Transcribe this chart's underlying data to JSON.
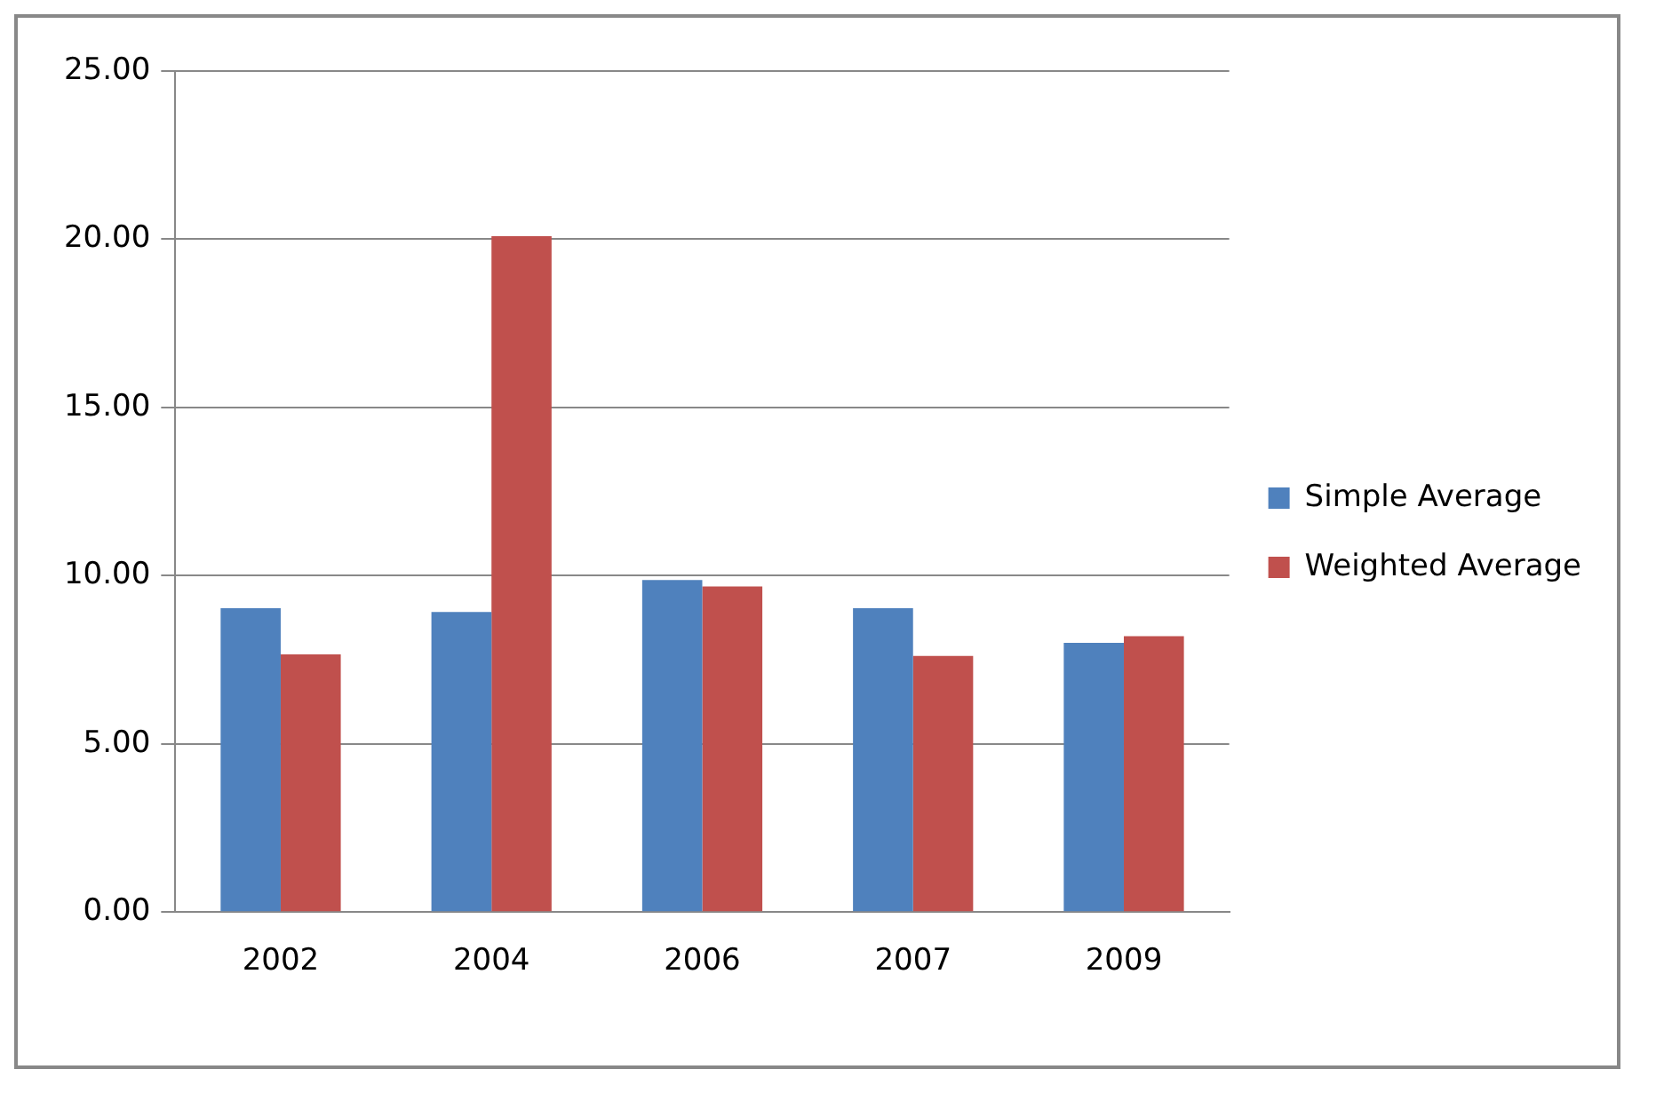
{
  "chart_data": {
    "type": "bar",
    "categories": [
      "2002",
      "2004",
      "2006",
      "2007",
      "2009"
    ],
    "series": [
      {
        "name": "Simple Average",
        "color": "#4f81bd",
        "values": [
          9.03,
          8.92,
          9.87,
          9.03,
          8.0
        ]
      },
      {
        "name": "Weighted Average",
        "color": "#c0504d",
        "values": [
          7.66,
          20.09,
          9.68,
          7.61,
          8.2
        ]
      }
    ],
    "ylim": [
      0,
      25
    ],
    "yticks": [
      {
        "value": 0,
        "label": "0.00"
      },
      {
        "value": 5,
        "label": "5.00"
      },
      {
        "value": 10,
        "label": "10.00"
      },
      {
        "value": 15,
        "label": "15.00"
      },
      {
        "value": 20,
        "label": "20.00"
      },
      {
        "value": 25,
        "label": "25.00"
      }
    ],
    "grid": "y",
    "legend": "right"
  }
}
